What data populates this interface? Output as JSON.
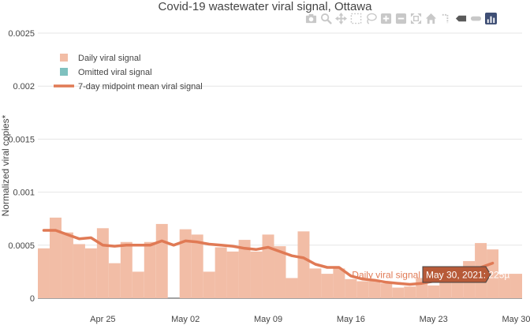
{
  "chart_data": {
    "type": "bar",
    "title": "Covid-19 wastewater viral signal, Ottawa",
    "ylabel": "Normalized viral copies*",
    "xlabel": "",
    "ylim": [
      0,
      0.0025
    ],
    "y_ticks": [
      "0",
      "0.0005",
      "0.001",
      "0.0015",
      "0.002",
      "0.0025"
    ],
    "x_ticks": [
      "Apr 25",
      "May 02",
      "May 09",
      "May 16",
      "May 23",
      "May 30"
    ],
    "grid": true,
    "legend_position": "top-left",
    "legend": [
      {
        "name": "Daily viral signal",
        "kind": "bar",
        "color": "#f2bda6"
      },
      {
        "name": "Omitted viral signal",
        "kind": "bar",
        "color": "#7fc1bf"
      },
      {
        "name": "7-day midpoint mean viral signal",
        "kind": "line",
        "color": "#e07a55"
      }
    ],
    "series": [
      {
        "name": "Daily viral signal",
        "dates": [
          "Apr 20",
          "Apr 21",
          "Apr 22",
          "Apr 23",
          "Apr 24",
          "Apr 25",
          "Apr 26",
          "Apr 27",
          "Apr 28",
          "Apr 29",
          "Apr 30",
          "May 01",
          "May 02",
          "May 03",
          "May 04",
          "May 05",
          "May 06",
          "May 07",
          "May 08",
          "May 09",
          "May 10",
          "May 11",
          "May 12",
          "May 13",
          "May 14",
          "May 15",
          "May 16",
          "May 17",
          "May 18",
          "May 19",
          "May 20",
          "May 21",
          "May 22",
          "May 23",
          "May 24",
          "May 25",
          "May 26",
          "May 27",
          "May 28",
          "May 29",
          "May 30"
        ],
        "values": [
          0.00047,
          0.00076,
          0.00062,
          0.00051,
          0.00047,
          0.00066,
          0.00033,
          0.00053,
          0.00025,
          0.00053,
          0.0007,
          0.0,
          0.00065,
          0.0006,
          0.00025,
          0.00048,
          0.00044,
          0.00055,
          0.00044,
          0.0006,
          0.00049,
          0.00019,
          0.00063,
          0.00028,
          0.00023,
          0.00028,
          0.00018,
          0.00016,
          0.00016,
          0.00014,
          0.0001,
          0.00011,
          0.00019,
          0.00012,
          0.00016,
          0.00015,
          0.00035,
          0.00052,
          0.00046,
          0.00023,
          0.00023
        ]
      },
      {
        "name": "7-day midpoint mean viral signal",
        "dates": [
          "Apr 20",
          "Apr 21",
          "Apr 22",
          "Apr 23",
          "Apr 24",
          "Apr 25",
          "Apr 26",
          "Apr 27",
          "Apr 28",
          "Apr 29",
          "Apr 30",
          "May 01",
          "May 02",
          "May 03",
          "May 04",
          "May 05",
          "May 06",
          "May 07",
          "May 08",
          "May 09",
          "May 10",
          "May 11",
          "May 12",
          "May 13",
          "May 14",
          "May 15",
          "May 16",
          "May 17",
          "May 18",
          "May 19",
          "May 20",
          "May 21",
          "May 22",
          "May 23",
          "May 24",
          "May 25",
          "May 26",
          "May 27",
          "May 28"
        ],
        "values": [
          0.00064,
          0.00064,
          0.0006,
          0.00056,
          0.00057,
          0.0005,
          0.00049,
          0.0005,
          0.0005,
          0.0005,
          0.00054,
          0.0005,
          0.00054,
          0.00053,
          0.00051,
          0.0005,
          0.00049,
          0.00047,
          0.00046,
          0.00048,
          0.00044,
          0.0004,
          0.00038,
          0.00032,
          0.00029,
          0.00029,
          0.00021,
          0.00018,
          0.00017,
          0.00015,
          0.00014,
          0.00013,
          0.00014,
          0.00016,
          0.00019,
          0.00022,
          0.00025,
          0.00029,
          0.00033
        ]
      }
    ],
    "hover": {
      "series_label": "Daily viral signal",
      "value_label": "May 30, 2021: 225µ"
    }
  },
  "toolbar": {
    "icons": [
      "camera-icon",
      "zoom-icon",
      "pan-icon",
      "box-select-icon",
      "lasso-icon",
      "zoom-in-icon",
      "zoom-out-icon",
      "autoscale-icon",
      "home-icon",
      "spike-lines-icon",
      "hover-closest-icon",
      "hover-compare-icon",
      "plotly-logo-icon"
    ]
  }
}
